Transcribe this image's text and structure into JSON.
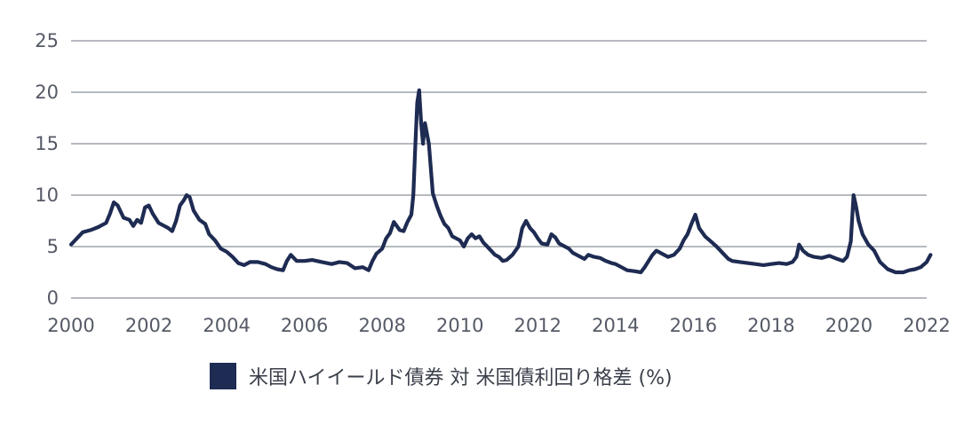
{
  "chart_data": {
    "type": "line",
    "title": "",
    "xlabel": "",
    "ylabel": "",
    "xlim": [
      2000,
      2022
    ],
    "ylim": [
      0,
      25
    ],
    "x_ticks": [
      "2000",
      "2002",
      "2004",
      "2006",
      "2008",
      "2010",
      "2012",
      "2014",
      "2016",
      "2018",
      "2020",
      "2022"
    ],
    "y_ticks": [
      "0",
      "5",
      "10",
      "15",
      "20",
      "25"
    ],
    "grid": "horizontal",
    "legend_position": "bottom",
    "series": [
      {
        "name": "米国ハイイールド債券 対 米国債利回り格差 (%)",
        "color": "#1e2b52",
        "points": [
          [
            2000.0,
            5.2
          ],
          [
            2000.15,
            5.8
          ],
          [
            2000.3,
            6.4
          ],
          [
            2000.5,
            6.6
          ],
          [
            2000.7,
            6.9
          ],
          [
            2000.9,
            7.3
          ],
          [
            2001.0,
            8.2
          ],
          [
            2001.1,
            9.3
          ],
          [
            2001.2,
            9.0
          ],
          [
            2001.35,
            7.8
          ],
          [
            2001.5,
            7.6
          ],
          [
            2001.6,
            7.0
          ],
          [
            2001.7,
            7.6
          ],
          [
            2001.8,
            7.3
          ],
          [
            2001.9,
            8.8
          ],
          [
            2002.0,
            9.0
          ],
          [
            2002.1,
            8.2
          ],
          [
            2002.25,
            7.3
          ],
          [
            2002.4,
            7.0
          ],
          [
            2002.5,
            6.8
          ],
          [
            2002.6,
            6.5
          ],
          [
            2002.7,
            7.5
          ],
          [
            2002.8,
            9.0
          ],
          [
            2002.9,
            9.5
          ],
          [
            2002.97,
            10.0
          ],
          [
            2003.05,
            9.8
          ],
          [
            2003.15,
            8.5
          ],
          [
            2003.3,
            7.6
          ],
          [
            2003.45,
            7.2
          ],
          [
            2003.55,
            6.2
          ],
          [
            2003.7,
            5.6
          ],
          [
            2003.85,
            4.8
          ],
          [
            2004.0,
            4.5
          ],
          [
            2004.15,
            4.0
          ],
          [
            2004.3,
            3.4
          ],
          [
            2004.45,
            3.2
          ],
          [
            2004.6,
            3.5
          ],
          [
            2004.8,
            3.5
          ],
          [
            2005.0,
            3.3
          ],
          [
            2005.15,
            3.0
          ],
          [
            2005.3,
            2.8
          ],
          [
            2005.45,
            2.7
          ],
          [
            2005.55,
            3.6
          ],
          [
            2005.65,
            4.2
          ],
          [
            2005.8,
            3.6
          ],
          [
            2006.0,
            3.6
          ],
          [
            2006.2,
            3.7
          ],
          [
            2006.45,
            3.5
          ],
          [
            2006.7,
            3.3
          ],
          [
            2006.9,
            3.5
          ],
          [
            2007.1,
            3.4
          ],
          [
            2007.3,
            2.9
          ],
          [
            2007.5,
            3.0
          ],
          [
            2007.65,
            2.7
          ],
          [
            2007.75,
            3.6
          ],
          [
            2007.85,
            4.3
          ],
          [
            2008.0,
            4.8
          ],
          [
            2008.1,
            5.8
          ],
          [
            2008.2,
            6.3
          ],
          [
            2008.3,
            7.4
          ],
          [
            2008.45,
            6.6
          ],
          [
            2008.55,
            6.5
          ],
          [
            2008.65,
            7.4
          ],
          [
            2008.75,
            8.1
          ],
          [
            2008.8,
            10.0
          ],
          [
            2008.85,
            14.7
          ],
          [
            2008.9,
            19.0
          ],
          [
            2008.95,
            20.2
          ],
          [
            2009.0,
            17.0
          ],
          [
            2009.05,
            15.0
          ],
          [
            2009.1,
            17.0
          ],
          [
            2009.2,
            15.0
          ],
          [
            2009.3,
            10.2
          ],
          [
            2009.4,
            9.0
          ],
          [
            2009.5,
            8.0
          ],
          [
            2009.6,
            7.2
          ],
          [
            2009.7,
            6.8
          ],
          [
            2009.8,
            6.0
          ],
          [
            2009.9,
            5.8
          ],
          [
            2010.0,
            5.6
          ],
          [
            2010.1,
            5.0
          ],
          [
            2010.2,
            5.8
          ],
          [
            2010.3,
            6.2
          ],
          [
            2010.4,
            5.8
          ],
          [
            2010.5,
            6.0
          ],
          [
            2010.6,
            5.4
          ],
          [
            2010.7,
            5.0
          ],
          [
            2010.8,
            4.6
          ],
          [
            2010.9,
            4.2
          ],
          [
            2011.0,
            4.0
          ],
          [
            2011.1,
            3.6
          ],
          [
            2011.2,
            3.7
          ],
          [
            2011.35,
            4.2
          ],
          [
            2011.5,
            5.0
          ],
          [
            2011.6,
            6.8
          ],
          [
            2011.7,
            7.5
          ],
          [
            2011.8,
            6.8
          ],
          [
            2011.9,
            6.4
          ],
          [
            2012.0,
            5.8
          ],
          [
            2012.1,
            5.3
          ],
          [
            2012.25,
            5.2
          ],
          [
            2012.35,
            6.2
          ],
          [
            2012.45,
            5.9
          ],
          [
            2012.55,
            5.3
          ],
          [
            2012.7,
            5.0
          ],
          [
            2012.8,
            4.8
          ],
          [
            2012.9,
            4.4
          ],
          [
            2013.0,
            4.2
          ],
          [
            2013.1,
            4.0
          ],
          [
            2013.2,
            3.8
          ],
          [
            2013.3,
            4.2
          ],
          [
            2013.45,
            4.0
          ],
          [
            2013.6,
            3.9
          ],
          [
            2013.75,
            3.6
          ],
          [
            2013.9,
            3.4
          ],
          [
            2014.0,
            3.3
          ],
          [
            2014.15,
            3.0
          ],
          [
            2014.3,
            2.7
          ],
          [
            2014.5,
            2.6
          ],
          [
            2014.65,
            2.5
          ],
          [
            2014.75,
            3.0
          ],
          [
            2014.85,
            3.6
          ],
          [
            2014.95,
            4.2
          ],
          [
            2015.05,
            4.6
          ],
          [
            2015.2,
            4.3
          ],
          [
            2015.35,
            4.0
          ],
          [
            2015.5,
            4.2
          ],
          [
            2015.65,
            4.8
          ],
          [
            2015.75,
            5.6
          ],
          [
            2015.85,
            6.2
          ],
          [
            2015.95,
            7.2
          ],
          [
            2016.05,
            8.1
          ],
          [
            2016.15,
            6.8
          ],
          [
            2016.3,
            6.0
          ],
          [
            2016.45,
            5.5
          ],
          [
            2016.6,
            5.0
          ],
          [
            2016.75,
            4.4
          ],
          [
            2016.9,
            3.8
          ],
          [
            2017.0,
            3.6
          ],
          [
            2017.2,
            3.5
          ],
          [
            2017.4,
            3.4
          ],
          [
            2017.6,
            3.3
          ],
          [
            2017.8,
            3.2
          ],
          [
            2018.0,
            3.3
          ],
          [
            2018.2,
            3.4
          ],
          [
            2018.4,
            3.3
          ],
          [
            2018.55,
            3.5
          ],
          [
            2018.65,
            4.0
          ],
          [
            2018.72,
            5.2
          ],
          [
            2018.82,
            4.6
          ],
          [
            2018.95,
            4.2
          ],
          [
            2019.1,
            4.0
          ],
          [
            2019.3,
            3.9
          ],
          [
            2019.5,
            4.1
          ],
          [
            2019.7,
            3.8
          ],
          [
            2019.85,
            3.6
          ],
          [
            2019.95,
            4.0
          ],
          [
            2020.05,
            5.5
          ],
          [
            2020.12,
            10.0
          ],
          [
            2020.18,
            9.0
          ],
          [
            2020.25,
            7.5
          ],
          [
            2020.35,
            6.2
          ],
          [
            2020.5,
            5.2
          ],
          [
            2020.65,
            4.6
          ],
          [
            2020.8,
            3.5
          ],
          [
            2021.0,
            2.8
          ],
          [
            2021.2,
            2.5
          ],
          [
            2021.4,
            2.5
          ],
          [
            2021.55,
            2.7
          ],
          [
            2021.7,
            2.8
          ],
          [
            2021.85,
            3.0
          ],
          [
            2022.0,
            3.5
          ],
          [
            2022.1,
            4.2
          ]
        ]
      }
    ]
  }
}
